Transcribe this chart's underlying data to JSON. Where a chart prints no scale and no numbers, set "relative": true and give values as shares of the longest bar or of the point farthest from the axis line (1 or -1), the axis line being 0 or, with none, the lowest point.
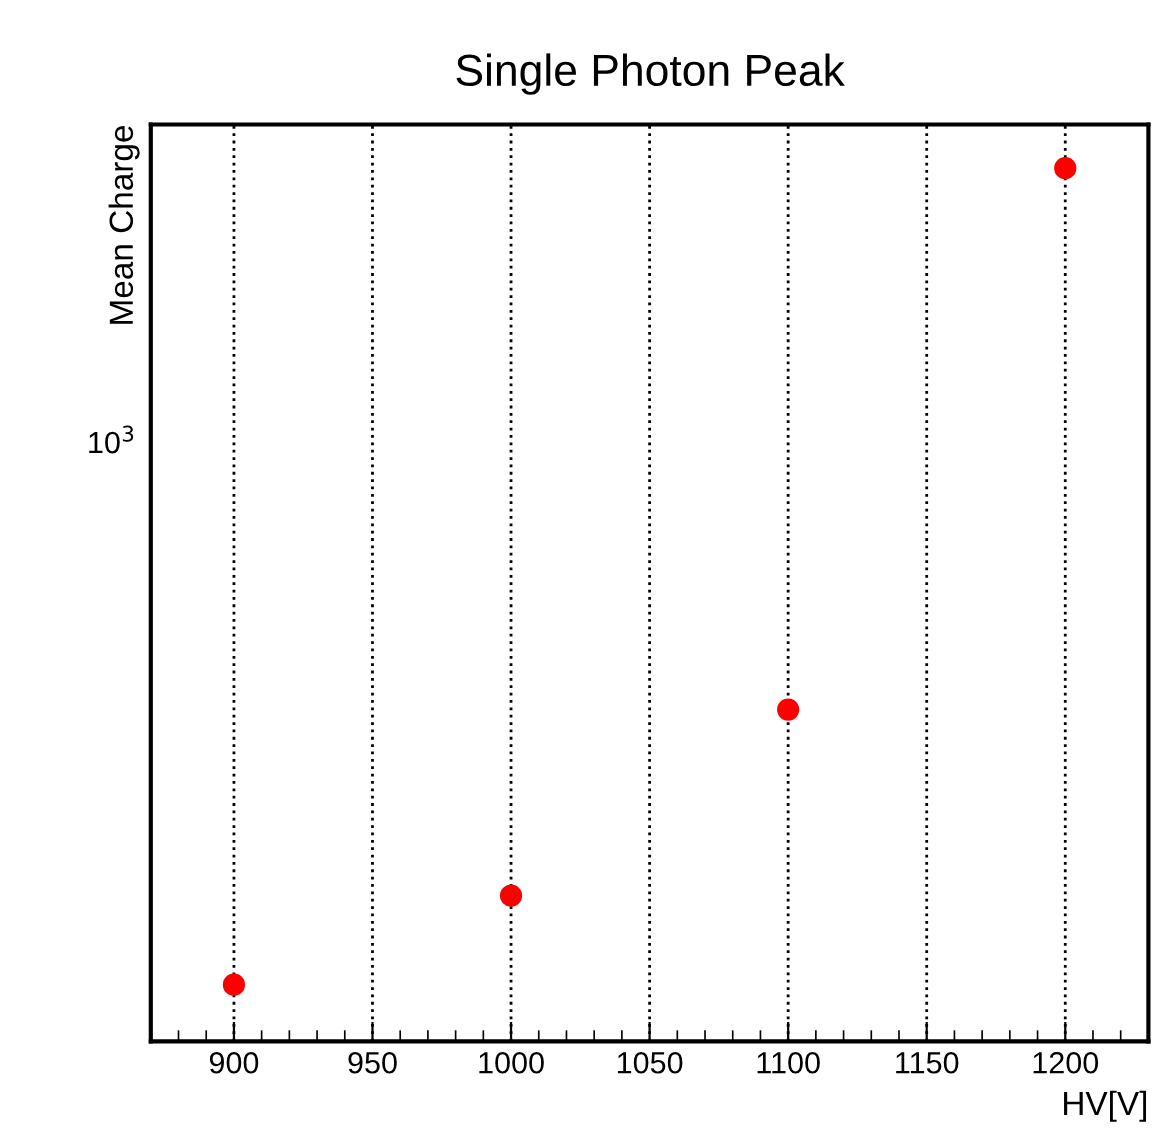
{
  "chart_data": {
    "type": "scatter",
    "title": "Single Photon Peak",
    "xlabel": "HV[V]",
    "ylabel": "Mean Charge",
    "x": [
      900,
      1000,
      1100,
      1200
    ],
    "series": [
      {
        "color": "#ff0000",
        "values": [
          0.065,
          0.167,
          0.38,
          1
        ]
      }
    ],
    "relative": true,
    "annotations": [
      "10$^{3}$"
    ],
    "xlim": [
      870,
      1230
    ],
    "xticks": [
      900,
      950,
      1000,
      1050,
      1100,
      1150,
      1200
    ],
    "grid": "x",
    "marker": "circle"
  }
}
